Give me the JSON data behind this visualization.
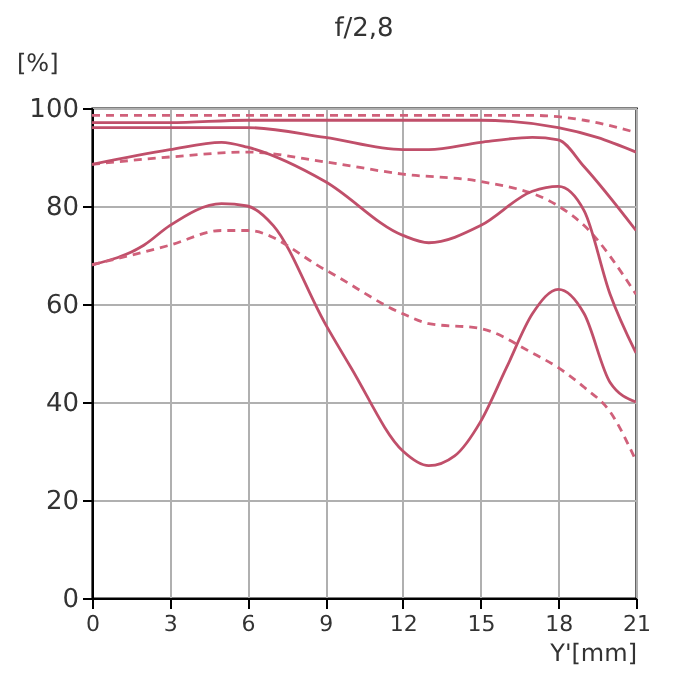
{
  "chart_data": {
    "type": "line",
    "title": "f/2,8",
    "xlabel": "Y'[mm]",
    "ylabel": "[%]",
    "xlim": [
      0,
      21
    ],
    "xticks": [
      0,
      3,
      6,
      9,
      12,
      15,
      18,
      21
    ],
    "ylim": [
      0,
      100
    ],
    "yticks": [
      0,
      20,
      40,
      60,
      80,
      100
    ],
    "grid": true,
    "marker": "none",
    "series": [
      {
        "color": "#d0607a",
        "line_style": "dashed",
        "x": [
          0,
          3,
          6,
          9,
          12,
          15,
          17,
          19,
          21
        ],
        "values": [
          98.5,
          98.5,
          98.5,
          98.5,
          98.5,
          98.5,
          98.5,
          97.5,
          95
        ]
      },
      {
        "color": "#c04f6a",
        "line_style": "solid",
        "x": [
          0,
          3,
          6,
          9,
          12,
          15,
          18,
          19.5,
          21
        ],
        "values": [
          97,
          97,
          97.5,
          97.5,
          97.5,
          97.5,
          96,
          94,
          91
        ]
      },
      {
        "color": "#c04f6a",
        "line_style": "solid",
        "x": [
          0,
          3,
          6,
          9,
          12,
          13,
          15,
          17,
          18,
          19,
          21
        ],
        "values": [
          96,
          96,
          96,
          94,
          91.5,
          91.5,
          93,
          94,
          93.5,
          88,
          75
        ]
      },
      {
        "color": "#d0607a",
        "line_style": "dashed",
        "x": [
          0,
          3,
          6,
          9,
          12,
          15,
          18,
          19,
          21
        ],
        "values": [
          88.5,
          90,
          91,
          89,
          86.5,
          85,
          80,
          76,
          62
        ]
      },
      {
        "color": "#c04f6a",
        "line_style": "solid",
        "x": [
          0,
          3,
          5,
          6,
          9,
          12,
          13,
          15,
          17,
          18,
          19,
          20,
          21
        ],
        "values": [
          88.5,
          91.5,
          93,
          92,
          85,
          74,
          72.5,
          76,
          83,
          84,
          79,
          62,
          50
        ]
      },
      {
        "color": "#c04f6a",
        "line_style": "solid",
        "x": [
          0,
          2,
          3,
          5,
          6,
          7,
          9,
          10,
          12,
          13,
          14,
          15,
          16,
          17,
          18,
          19,
          20,
          21
        ],
        "values": [
          68,
          72,
          76,
          80.5,
          80,
          76,
          56,
          47,
          30,
          27,
          29,
          36,
          47,
          58,
          63,
          58,
          44,
          40
        ]
      },
      {
        "color": "#d0607a",
        "line_style": "dashed",
        "x": [
          0,
          3,
          5,
          6,
          9,
          12,
          13,
          15,
          17,
          18,
          19,
          20,
          21
        ],
        "values": [
          68,
          72,
          75,
          75,
          67,
          58,
          56,
          55,
          50,
          47,
          43,
          38,
          28
        ]
      }
    ]
  }
}
